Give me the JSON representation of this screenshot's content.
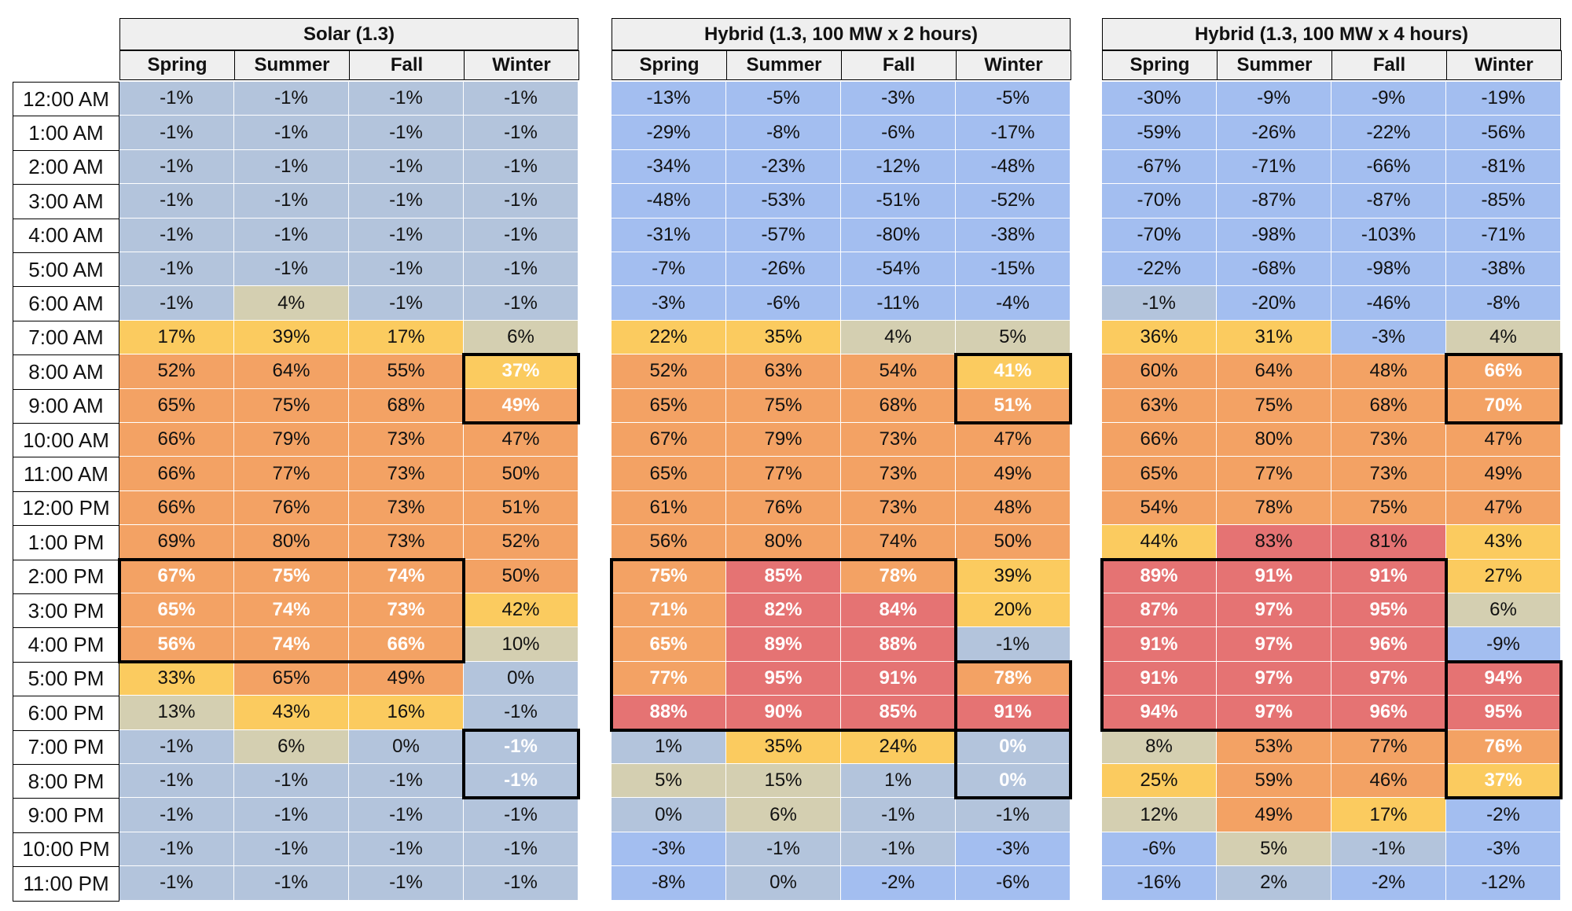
{
  "colors": {
    "neg": "#a3bef0",
    "near_zero": "#b3c4dc",
    "low": "#d4cfb1",
    "mid": "#fbcb5f",
    "high": "#f3a264",
    "top": "#e57373"
  },
  "chart_data": {
    "type": "heatmap",
    "rows": [
      "12:00 AM",
      "1:00 AM",
      "2:00 AM",
      "3:00 AM",
      "4:00 AM",
      "5:00 AM",
      "6:00 AM",
      "7:00 AM",
      "8:00 AM",
      "9:00 AM",
      "10:00 AM",
      "11:00 AM",
      "12:00 PM",
      "1:00 PM",
      "2:00 PM",
      "3:00 PM",
      "4:00 PM",
      "5:00 PM",
      "6:00 PM",
      "7:00 PM",
      "8:00 PM",
      "9:00 PM",
      "10:00 PM",
      "11:00 PM"
    ],
    "columns": [
      "Spring",
      "Summer",
      "Fall",
      "Winter"
    ],
    "value_unit": "%",
    "groups": [
      {
        "title": "Solar (1.3)",
        "values": [
          [
            -1,
            -1,
            -1,
            -1
          ],
          [
            -1,
            -1,
            -1,
            -1
          ],
          [
            -1,
            -1,
            -1,
            -1
          ],
          [
            -1,
            -1,
            -1,
            -1
          ],
          [
            -1,
            -1,
            -1,
            -1
          ],
          [
            -1,
            -1,
            -1,
            -1
          ],
          [
            -1,
            4,
            -1,
            -1
          ],
          [
            17,
            39,
            17,
            6
          ],
          [
            52,
            64,
            55,
            37
          ],
          [
            65,
            75,
            68,
            49
          ],
          [
            66,
            79,
            73,
            47
          ],
          [
            66,
            77,
            73,
            50
          ],
          [
            66,
            76,
            73,
            51
          ],
          [
            69,
            80,
            73,
            52
          ],
          [
            67,
            75,
            74,
            50
          ],
          [
            65,
            74,
            73,
            42
          ],
          [
            56,
            74,
            66,
            10
          ],
          [
            33,
            65,
            49,
            0
          ],
          [
            13,
            43,
            16,
            -1
          ],
          [
            -1,
            6,
            0,
            -1
          ],
          [
            -1,
            -1,
            -1,
            -1
          ],
          [
            -1,
            -1,
            -1,
            -1
          ],
          [
            -1,
            -1,
            -1,
            -1
          ],
          [
            -1,
            -1,
            -1,
            -1
          ]
        ],
        "highlights": [
          {
            "row_start": 8,
            "row_end": 9,
            "col_start": 3,
            "col_end": 3
          },
          {
            "row_start": 14,
            "row_end": 16,
            "col_start": 0,
            "col_end": 2
          },
          {
            "row_start": 19,
            "row_end": 20,
            "col_start": 3,
            "col_end": 3
          }
        ]
      },
      {
        "title": "Hybrid (1.3, 100 MW x 2 hours)",
        "values": [
          [
            -13,
            -5,
            -3,
            -5
          ],
          [
            -29,
            -8,
            -6,
            -17
          ],
          [
            -34,
            -23,
            -12,
            -48
          ],
          [
            -48,
            -53,
            -51,
            -52
          ],
          [
            -31,
            -57,
            -80,
            -38
          ],
          [
            -7,
            -26,
            -54,
            -15
          ],
          [
            -3,
            -6,
            -11,
            -4
          ],
          [
            22,
            35,
            4,
            5
          ],
          [
            52,
            63,
            54,
            41
          ],
          [
            65,
            75,
            68,
            51
          ],
          [
            67,
            79,
            73,
            47
          ],
          [
            65,
            77,
            73,
            49
          ],
          [
            61,
            76,
            73,
            48
          ],
          [
            56,
            80,
            74,
            50
          ],
          [
            75,
            85,
            78,
            39
          ],
          [
            71,
            82,
            84,
            20
          ],
          [
            65,
            89,
            88,
            -1
          ],
          [
            77,
            95,
            91,
            78
          ],
          [
            88,
            90,
            85,
            91
          ],
          [
            1,
            35,
            24,
            0
          ],
          [
            5,
            15,
            1,
            0
          ],
          [
            0,
            6,
            -1,
            -1
          ],
          [
            -3,
            -1,
            -1,
            -3
          ],
          [
            -8,
            0,
            -2,
            -6
          ]
        ],
        "highlights": [
          {
            "row_start": 8,
            "row_end": 9,
            "col_start": 3,
            "col_end": 3
          },
          {
            "row_start": 14,
            "row_end": 18,
            "col_start": 0,
            "col_end": 2
          },
          {
            "row_start": 17,
            "row_end": 18,
            "col_start": 3,
            "col_end": 3
          },
          {
            "row_start": 19,
            "row_end": 20,
            "col_start": 3,
            "col_end": 3
          }
        ]
      },
      {
        "title": "Hybrid (1.3, 100 MW x 4 hours)",
        "values": [
          [
            -30,
            -9,
            -9,
            -19
          ],
          [
            -59,
            -26,
            -22,
            -56
          ],
          [
            -67,
            -71,
            -66,
            -81
          ],
          [
            -70,
            -87,
            -87,
            -85
          ],
          [
            -70,
            -98,
            -103,
            -71
          ],
          [
            -22,
            -68,
            -98,
            -38
          ],
          [
            -1,
            -20,
            -46,
            -8
          ],
          [
            36,
            31,
            -3,
            4
          ],
          [
            60,
            64,
            48,
            66
          ],
          [
            63,
            75,
            68,
            70
          ],
          [
            66,
            80,
            73,
            47
          ],
          [
            65,
            77,
            73,
            49
          ],
          [
            54,
            78,
            75,
            47
          ],
          [
            44,
            83,
            81,
            43
          ],
          [
            89,
            91,
            91,
            27
          ],
          [
            87,
            97,
            95,
            6
          ],
          [
            91,
            97,
            96,
            -9
          ],
          [
            91,
            97,
            97,
            94
          ],
          [
            94,
            97,
            96,
            95
          ],
          [
            8,
            53,
            77,
            76
          ],
          [
            25,
            59,
            46,
            37
          ],
          [
            12,
            49,
            17,
            -2
          ],
          [
            -6,
            5,
            -1,
            -3
          ],
          [
            -16,
            2,
            -2,
            -12
          ]
        ],
        "highlights": [
          {
            "row_start": 8,
            "row_end": 9,
            "col_start": 3,
            "col_end": 3
          },
          {
            "row_start": 14,
            "row_end": 18,
            "col_start": 0,
            "col_end": 2
          },
          {
            "row_start": 17,
            "row_end": 20,
            "col_start": 3,
            "col_end": 3
          }
        ]
      }
    ]
  }
}
